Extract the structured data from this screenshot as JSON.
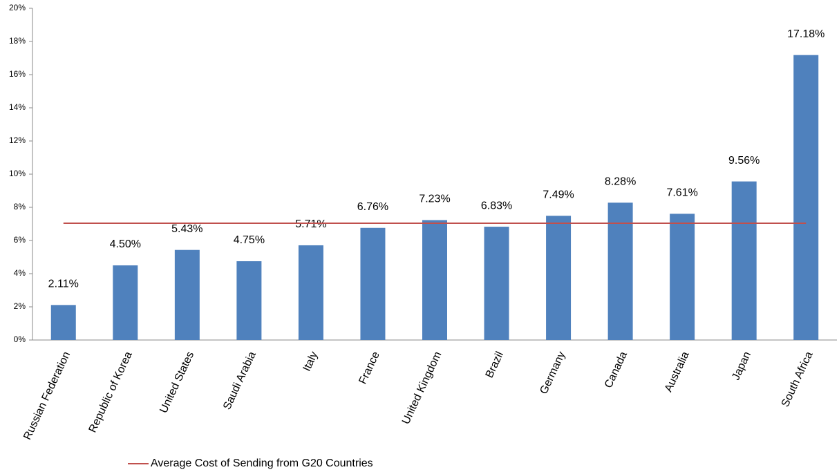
{
  "chart_data": {
    "type": "bar",
    "categories": [
      "Russian Federation",
      "Republic of Korea",
      "United States",
      "Saudi Arabia",
      "Italy",
      "France",
      "United Kingdom",
      "Brazil",
      "Germany",
      "Canada",
      "Australia",
      "Japan",
      "South Africa"
    ],
    "values": [
      2.11,
      4.5,
      5.43,
      4.75,
      5.71,
      6.76,
      7.23,
      6.83,
      7.49,
      8.28,
      7.61,
      9.56,
      17.18
    ],
    "value_labels": [
      "2.11%",
      "4.50%",
      "5.43%",
      "4.75%",
      "5.71%",
      "6.76%",
      "7.23%",
      "6.83%",
      "7.49%",
      "8.28%",
      "7.61%",
      "9.56%",
      "17.18%"
    ],
    "color": "#4f81bd",
    "average": {
      "name": "Average Cost of Sending from G20 Countries",
      "value": 7.04,
      "color": "#c0504d"
    },
    "ylim": [
      0,
      20
    ],
    "yticks": [
      {
        "value": 0,
        "label": "0%"
      },
      {
        "value": 2,
        "label": "2%"
      },
      {
        "value": 4,
        "label": "4%"
      },
      {
        "value": 6,
        "label": "6%"
      },
      {
        "value": 8,
        "label": "8%"
      },
      {
        "value": 10,
        "label": "10%"
      },
      {
        "value": 12,
        "label": "12%"
      },
      {
        "value": 14,
        "label": "14%"
      },
      {
        "value": 16,
        "label": "16%"
      },
      {
        "value": 18,
        "label": "18%"
      },
      {
        "value": 20,
        "label": "20%"
      }
    ],
    "grid": false
  }
}
